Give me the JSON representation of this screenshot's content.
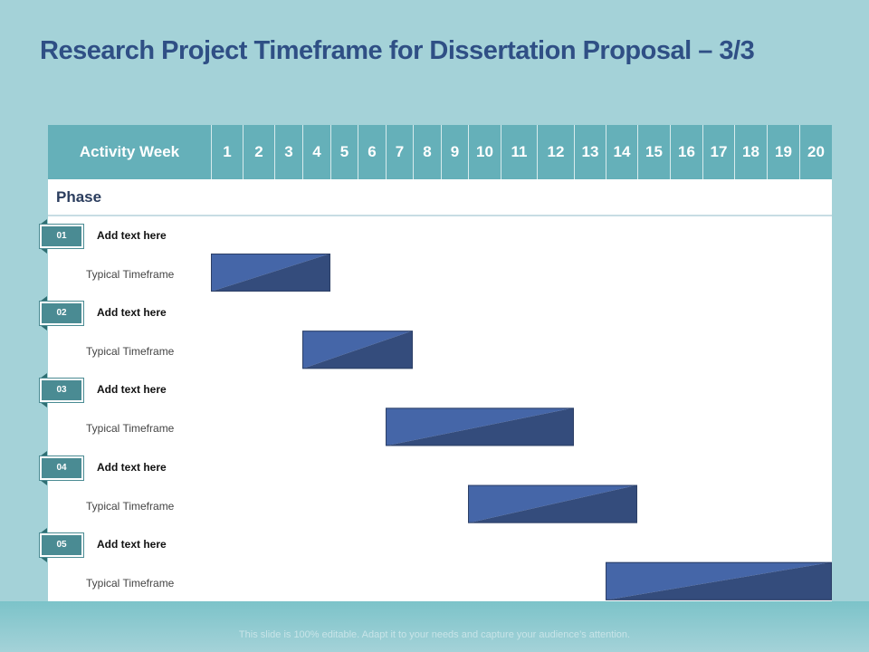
{
  "slide": {
    "title": "Research Project Timeframe for Dissertation Proposal – 3/3",
    "footer": "This slide is 100% editable. Adapt it to your needs and capture your audience’s attention."
  },
  "table": {
    "activity_label": "Activity Week",
    "phase_label": "Phase"
  },
  "colors": {
    "background": "#a4d2d8",
    "header": "#65b0b9",
    "bar_light": "#4566a8",
    "bar_dark": "#344c7c",
    "badge": "#4a8b93",
    "title": "#2f4f85"
  },
  "chart_data": {
    "type": "bar",
    "orientation": "gantt",
    "categories": [
      "1",
      "2",
      "3",
      "4",
      "5",
      "6",
      "7",
      "8",
      "9",
      "10",
      "11",
      "12",
      "13",
      "14",
      "15",
      "16",
      "17",
      "18",
      "19",
      "20"
    ],
    "phases": [
      {
        "number": "01",
        "title": "Add text here",
        "row_label": "Typical Timeframe",
        "start_week": 1,
        "end_week": 4
      },
      {
        "number": "02",
        "title": "Add text here",
        "row_label": "Typical Timeframe",
        "start_week": 4,
        "end_week": 7
      },
      {
        "number": "03",
        "title": "Add text here",
        "row_label": "Typical Timeframe",
        "start_week": 7,
        "end_week": 12
      },
      {
        "number": "04",
        "title": "Add text here",
        "row_label": "Typical Timeframe",
        "start_week": 10,
        "end_week": 14
      },
      {
        "number": "05",
        "title": "Add text here",
        "row_label": "Typical Timeframe",
        "start_week": 14,
        "end_week": 20
      }
    ]
  }
}
